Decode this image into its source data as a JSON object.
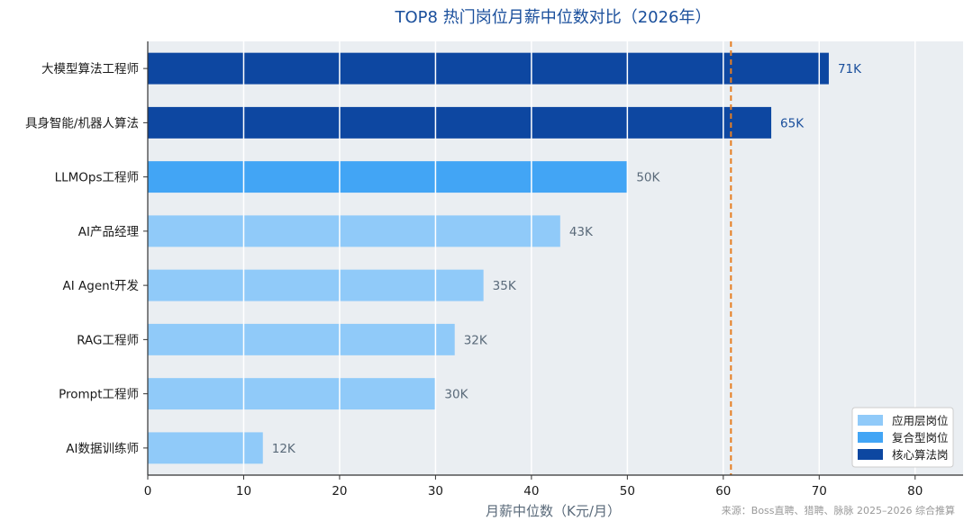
{
  "chart_data": {
    "type": "bar",
    "orientation": "horizontal",
    "title": "TOP8 热门岗位月薪中位数对比（2026年）",
    "xlabel": "月薪中位数（K元/月）",
    "ylabel": "",
    "xlim": [
      0,
      85
    ],
    "xticks": [
      0,
      10,
      20,
      30,
      40,
      50,
      60,
      70,
      80
    ],
    "grid": true,
    "legend_position": "bottom-right",
    "categories": [
      "大模型算法工程师",
      "具身智能/机器人算法",
      "LLMOps工程师",
      "AI产品经理",
      "AI Agent开发",
      "RAG工程师",
      "Prompt工程师",
      "AI数据训练师"
    ],
    "values": [
      71,
      65,
      50,
      43,
      35,
      32,
      30,
      12
    ],
    "value_labels": [
      "71K",
      "65K",
      "50K",
      "43K",
      "35K",
      "32K",
      "30K",
      "12K"
    ],
    "groups": [
      "core",
      "core",
      "composite",
      "application",
      "application",
      "application",
      "application",
      "application"
    ],
    "legend": [
      {
        "key": "application",
        "label": "应用层岗位",
        "color": "#90caf9"
      },
      {
        "key": "composite",
        "label": "复合型岗位",
        "color": "#42a5f5"
      },
      {
        "key": "core",
        "label": "核心算法岗",
        "color": "#0d47a1"
      }
    ],
    "reference_line": {
      "value": 60.8,
      "color": "#e67e22"
    },
    "source": "来源：Boss直聘、猎聘、脉脉 2025–2026 综合推算"
  },
  "colors": {
    "plot_background": "#eaeef2",
    "label_core": "#1a4f9c",
    "label_other": "#5a6a7a"
  }
}
